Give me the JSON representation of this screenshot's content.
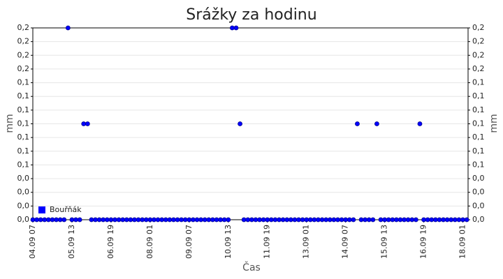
{
  "chart_data": {
    "type": "scatter",
    "title": "Srážky za hodinu",
    "x_label": "Čas",
    "y_label": "mm",
    "x": [
      0,
      3,
      6,
      9,
      12,
      15,
      18,
      21,
      24,
      27,
      30,
      33,
      36,
      39,
      42,
      45,
      48,
      51,
      54,
      57,
      60,
      63,
      66,
      69,
      72,
      75,
      78,
      81,
      84,
      87,
      90,
      93,
      96,
      99,
      102,
      105,
      108,
      111,
      114,
      117,
      120,
      123,
      126,
      129,
      132,
      135,
      138,
      141,
      144,
      147,
      150,
      153,
      156,
      159,
      162,
      165,
      168,
      171,
      174,
      177,
      180,
      183,
      186,
      189,
      192,
      195,
      198,
      201,
      204,
      207,
      210,
      213,
      216,
      219,
      222,
      225,
      228,
      231,
      234,
      237,
      240,
      243,
      246,
      249,
      252,
      255,
      258,
      261,
      264,
      267,
      270,
      273,
      276,
      279,
      282,
      285,
      288,
      291,
      294,
      297,
      300,
      303,
      306,
      309,
      312,
      315,
      318,
      321,
      324,
      327,
      330,
      333
    ],
    "series": [
      {
        "name": "Bouřňák",
        "color": "#0000ff",
        "values": [
          0,
          0,
          0,
          0,
          0,
          0,
          0,
          0,
          0,
          0.2,
          0,
          0,
          0,
          0.1,
          0.1,
          0,
          0,
          0,
          0,
          0,
          0,
          0,
          0,
          0,
          0,
          0,
          0,
          0,
          0,
          0,
          0,
          0,
          0,
          0,
          0,
          0,
          0,
          0,
          0,
          0,
          0,
          0,
          0,
          0,
          0,
          0,
          0,
          0,
          0,
          0,
          0,
          0.2,
          0.2,
          0.1,
          0,
          0,
          0,
          0,
          0,
          0,
          0,
          0,
          0,
          0,
          0,
          0,
          0,
          0,
          0,
          0,
          0,
          0,
          0,
          0,
          0,
          0,
          0,
          0,
          0,
          0,
          0,
          0,
          0,
          0.1,
          0,
          0,
          0,
          0,
          0.1,
          0,
          0,
          0,
          0,
          0,
          0,
          0,
          0,
          0,
          0,
          0.1,
          0,
          0,
          0,
          0,
          0,
          0,
          0,
          0,
          0,
          0,
          0,
          0
        ]
      }
    ],
    "xlim": [
      0,
      334
    ],
    "xticks": [
      {
        "value": 0,
        "label": "04.09 07"
      },
      {
        "value": 30,
        "label": "05.09 13"
      },
      {
        "value": 60,
        "label": "06.09 19"
      },
      {
        "value": 90,
        "label": "08.09 01"
      },
      {
        "value": 120,
        "label": "09.09 07"
      },
      {
        "value": 150,
        "label": "10.09 13"
      },
      {
        "value": 180,
        "label": "11.09 19"
      },
      {
        "value": 210,
        "label": "13.09 01"
      },
      {
        "value": 240,
        "label": "14.09 07"
      },
      {
        "value": 270,
        "label": "15.09 13"
      },
      {
        "value": 300,
        "label": "16.09 19"
      },
      {
        "value": 330,
        "label": "18.09 01"
      }
    ],
    "ylim": [
      0,
      0.2
    ],
    "yticks": [
      {
        "value": 0,
        "label": "0,0"
      },
      {
        "value": 0.01429,
        "label": "0,0"
      },
      {
        "value": 0.02857,
        "label": "0,0"
      },
      {
        "value": 0.04286,
        "label": "0,0"
      },
      {
        "value": 0.05714,
        "label": "0,1"
      },
      {
        "value": 0.07143,
        "label": "0,1"
      },
      {
        "value": 0.08571,
        "label": "0,1"
      },
      {
        "value": 0.1,
        "label": "0,1"
      },
      {
        "value": 0.11429,
        "label": "0,1"
      },
      {
        "value": 0.12857,
        "label": "0,1"
      },
      {
        "value": 0.14286,
        "label": "0,1"
      },
      {
        "value": 0.15714,
        "label": "0,2"
      },
      {
        "value": 0.17143,
        "label": "0,2"
      },
      {
        "value": 0.18571,
        "label": "0,2"
      },
      {
        "value": 0.2,
        "label": "0,2"
      }
    ],
    "grid": true,
    "legend": "bottom-left"
  }
}
